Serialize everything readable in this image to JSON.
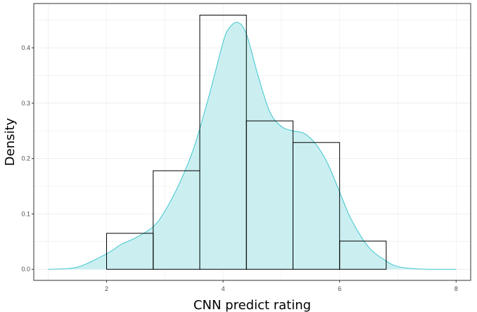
{
  "chart_data": {
    "type": "bar",
    "subtype": "histogram-with-density",
    "xlabel": "CNN predict rating",
    "ylabel": "Density",
    "xlim": [
      0.75,
      8.25
    ],
    "ylim": [
      -0.02,
      0.48
    ],
    "grid": true,
    "x_ticks": [
      2,
      4,
      6,
      8
    ],
    "x_tick_labels": [
      "2",
      "4",
      "6",
      "8"
    ],
    "y_ticks": [
      0.0,
      0.1,
      0.2,
      0.3,
      0.4
    ],
    "y_tick_labels": [
      "0.0",
      "0.1",
      "0.2",
      "0.3",
      "0.4"
    ],
    "histogram": {
      "bins": [
        {
          "x0": 2.0,
          "x1": 2.8,
          "density": 0.065
        },
        {
          "x0": 2.8,
          "x1": 3.6,
          "density": 0.178
        },
        {
          "x0": 3.6,
          "x1": 4.4,
          "density": 0.459
        },
        {
          "x0": 4.4,
          "x1": 5.2,
          "density": 0.268
        },
        {
          "x0": 5.2,
          "x1": 6.0,
          "density": 0.229
        },
        {
          "x0": 6.0,
          "x1": 6.8,
          "density": 0.051
        }
      ],
      "fill": "none",
      "stroke": "#000000"
    },
    "density": {
      "x": [
        1.0,
        1.5,
        2.0,
        2.25,
        2.5,
        2.8,
        3.0,
        3.25,
        3.5,
        3.75,
        4.0,
        4.1,
        4.25,
        4.4,
        4.6,
        4.8,
        5.0,
        5.2,
        5.4,
        5.6,
        5.8,
        6.0,
        6.2,
        6.5,
        6.8,
        7.0,
        7.3,
        7.6,
        8.0
      ],
      "y": [
        0.0,
        0.004,
        0.028,
        0.045,
        0.057,
        0.077,
        0.105,
        0.155,
        0.22,
        0.31,
        0.41,
        0.435,
        0.446,
        0.425,
        0.35,
        0.285,
        0.258,
        0.25,
        0.245,
        0.225,
        0.19,
        0.14,
        0.09,
        0.04,
        0.015,
        0.005,
        0.001,
        0.0,
        0.0
      ],
      "fill": "#cbeff0",
      "stroke": "#3dc5cf"
    },
    "colors": {
      "grid": "#ebebeb",
      "panel_border": "#333333",
      "tick": "#333333"
    }
  }
}
